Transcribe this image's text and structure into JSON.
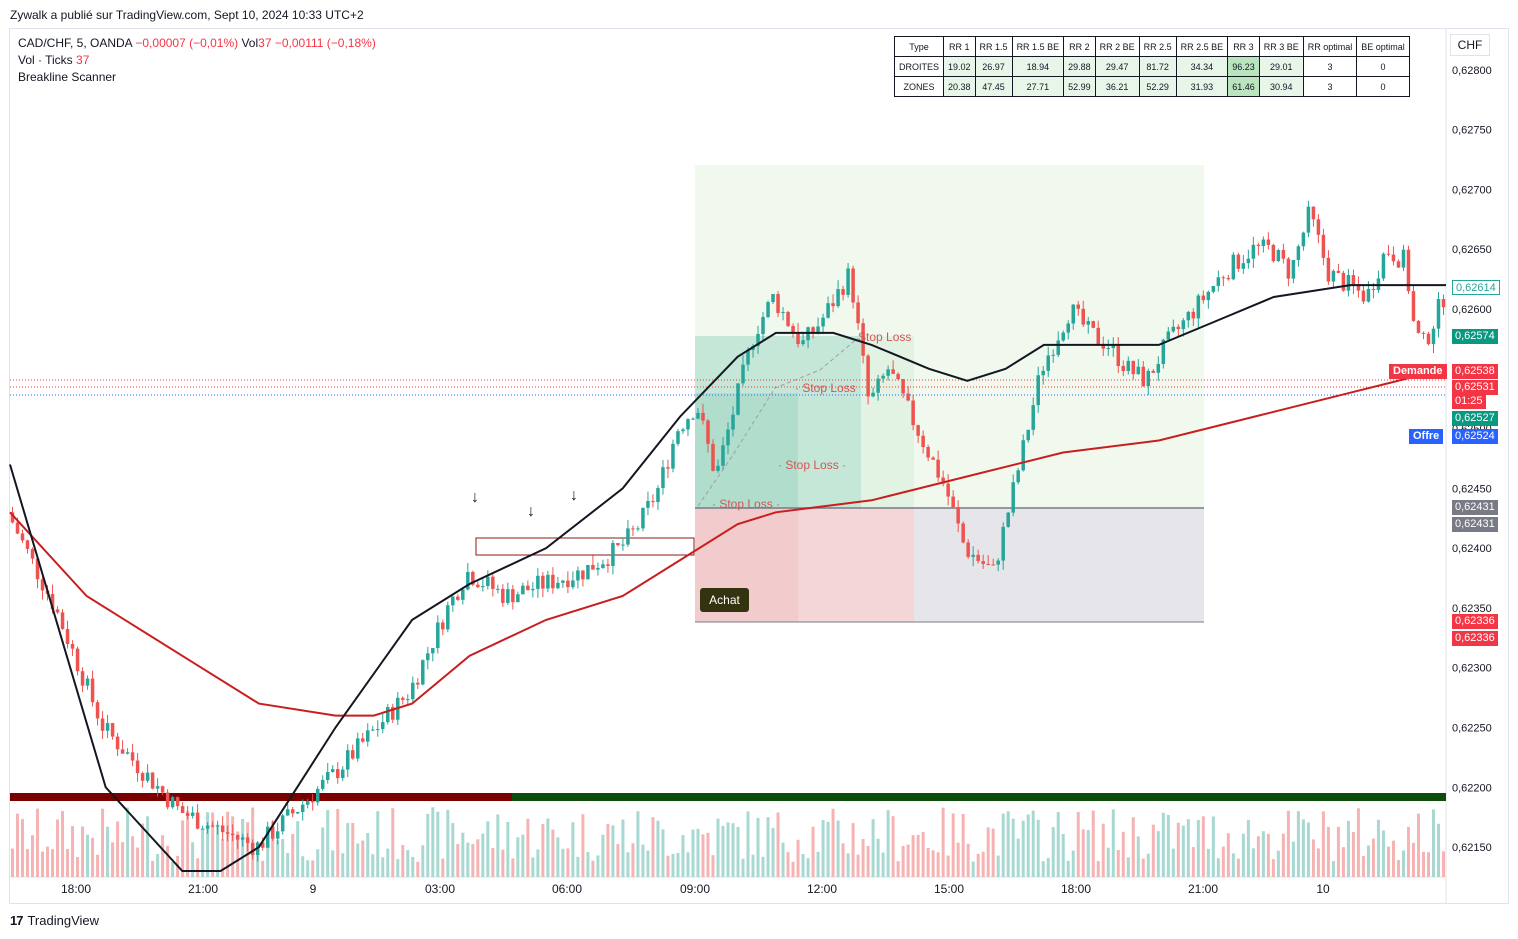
{
  "publisher": "Zywalk a publié sur TradingView.com, Sept 10, 2024 10:33 UTC+2",
  "legend": {
    "symbol": "CAD/CHF, 5, OANDA",
    "change": "−0,00007 (−0,01%)",
    "vol_label": "Vol",
    "vol_value": "37",
    "vol_change": "−0,00111 (−0,18%)",
    "ticks_label": "Vol · Ticks",
    "ticks_value": "37",
    "indicator": "Breakline Scanner"
  },
  "currency": "CHF",
  "stats_table": {
    "headers": [
      "Type",
      "RR 1",
      "RR 1.5",
      "RR 1.5 BE",
      "RR 2",
      "RR 2 BE",
      "RR 2.5",
      "RR 2.5 BE",
      "RR 3",
      "RR 3 BE",
      "RR optimal",
      "BE optimal"
    ],
    "rows": [
      [
        "DROITES",
        "19.02",
        "26.97",
        "18.94",
        "29.88",
        "29.47",
        "81.72",
        "34.34",
        "96.23",
        "29.01",
        "3",
        "0"
      ],
      [
        "ZONES",
        "20.38",
        "47.45",
        "27.71",
        "52.99",
        "36.21",
        "52.29",
        "31.93",
        "61.46",
        "30.94",
        "3",
        "0"
      ]
    ]
  },
  "price_axis": [
    "0,62800",
    "0,62750",
    "0,62700",
    "0,62650",
    "0,62600",
    "0,62550",
    "0,62500",
    "0,62450",
    "0,62400",
    "0,62350",
    "0,62300",
    "0,62250",
    "0,62200",
    "0,62150"
  ],
  "time_axis": [
    "18:00",
    "21:00",
    "9",
    "03:00",
    "06:00",
    "09:00",
    "12:00",
    "15:00",
    "18:00",
    "21:00",
    "10"
  ],
  "price_tags": [
    {
      "text": "0,62614",
      "color": "#26a69a",
      "outline": true
    },
    {
      "text": "0,62574",
      "color": "#089981"
    },
    {
      "text": "0,62538",
      "color": "#f23645"
    },
    {
      "text": "0,62531",
      "color": "#f23645"
    },
    {
      "text": "01:25",
      "color": "#f23645"
    },
    {
      "text": "0,62527",
      "color": "#089981"
    },
    {
      "text": "0,62524",
      "color": "#2962ff"
    },
    {
      "text": "0,62431",
      "color": "#787b86"
    },
    {
      "text": "0,62431",
      "color": "#787b86"
    },
    {
      "text": "0,62336",
      "color": "#f23645"
    },
    {
      "text": "0,62336",
      "color": "#f23645"
    }
  ],
  "demande_label": "Demande",
  "offre_label": "Offre",
  "stop_loss_label": "Stop Loss",
  "achat_label": "Achat",
  "tv_brand": "TradingView",
  "chart_data": {
    "type": "candlestick",
    "symbol": "CAD/CHF",
    "timeframe": "5",
    "ylim": [
      0.62125,
      0.62835
    ],
    "x_ticks": [
      "18:00",
      "21:00",
      "9",
      "03:00",
      "06:00",
      "09:00",
      "12:00",
      "15:00",
      "18:00",
      "21:00",
      "10"
    ],
    "close_path": [
      [
        0,
        0.6243
      ],
      [
        5,
        0.6235
      ],
      [
        10,
        0.6225
      ],
      [
        18,
        0.6218
      ],
      [
        26,
        0.6215
      ],
      [
        34,
        0.6221
      ],
      [
        42,
        0.6228
      ],
      [
        46,
        0.6235
      ],
      [
        48,
        0.6238
      ],
      [
        52,
        0.6236
      ],
      [
        56,
        0.6237
      ],
      [
        60,
        0.6238
      ],
      [
        64,
        0.624
      ],
      [
        66,
        0.6242
      ],
      [
        68,
        0.6245
      ],
      [
        70,
        0.625
      ],
      [
        72,
        0.6252
      ],
      [
        74,
        0.6246
      ],
      [
        76,
        0.6252
      ],
      [
        78,
        0.6258
      ],
      [
        80,
        0.6261
      ],
      [
        83,
        0.6257
      ],
      [
        85,
        0.6259
      ],
      [
        88,
        0.6263
      ],
      [
        90,
        0.6252
      ],
      [
        92,
        0.6255
      ],
      [
        95,
        0.625
      ],
      [
        98,
        0.6245
      ],
      [
        100,
        0.624
      ],
      [
        103,
        0.6238
      ],
      [
        106,
        0.6248
      ],
      [
        108,
        0.6255
      ],
      [
        111,
        0.626
      ],
      [
        113,
        0.6258
      ],
      [
        115,
        0.6257
      ],
      [
        117,
        0.6255
      ],
      [
        119,
        0.6254
      ],
      [
        121,
        0.6257
      ],
      [
        124,
        0.626
      ],
      [
        127,
        0.6263
      ],
      [
        130,
        0.6265
      ],
      [
        132,
        0.6265
      ],
      [
        134,
        0.6263
      ],
      [
        136,
        0.6268
      ],
      [
        138,
        0.6263
      ],
      [
        140,
        0.6262
      ],
      [
        142,
        0.6261
      ],
      [
        144,
        0.6265
      ],
      [
        146,
        0.6264
      ],
      [
        147,
        0.6258
      ],
      [
        148,
        0.6257
      ],
      [
        150,
        0.6261
      ]
    ],
    "ema_fast": [
      [
        0,
        0.6247
      ],
      [
        10,
        0.622
      ],
      [
        18,
        0.6213
      ],
      [
        22,
        0.6213
      ],
      [
        26,
        0.6215
      ],
      [
        34,
        0.6225
      ],
      [
        42,
        0.6234
      ],
      [
        48,
        0.6237
      ],
      [
        56,
        0.624
      ],
      [
        64,
        0.6245
      ],
      [
        70,
        0.6251
      ],
      [
        76,
        0.6256
      ],
      [
        80,
        0.6258
      ],
      [
        86,
        0.6258
      ],
      [
        90,
        0.6257
      ],
      [
        96,
        0.6255
      ],
      [
        100,
        0.6254
      ],
      [
        104,
        0.6255
      ],
      [
        108,
        0.6257
      ],
      [
        114,
        0.6257
      ],
      [
        120,
        0.6257
      ],
      [
        126,
        0.6259
      ],
      [
        132,
        0.6261
      ],
      [
        140,
        0.6262
      ],
      [
        150,
        0.6262
      ]
    ],
    "ema_slow": [
      [
        0,
        0.6243
      ],
      [
        8,
        0.6236
      ],
      [
        18,
        0.6231
      ],
      [
        26,
        0.6227
      ],
      [
        34,
        0.6226
      ],
      [
        38,
        0.6226
      ],
      [
        42,
        0.6227
      ],
      [
        48,
        0.6231
      ],
      [
        56,
        0.6234
      ],
      [
        64,
        0.6236
      ],
      [
        70,
        0.6239
      ],
      [
        76,
        0.6242
      ],
      [
        80,
        0.6243
      ],
      [
        90,
        0.6244
      ],
      [
        100,
        0.6246
      ],
      [
        110,
        0.6248
      ],
      [
        120,
        0.6249
      ],
      [
        130,
        0.6251
      ],
      [
        140,
        0.6253
      ],
      [
        150,
        0.6255
      ]
    ],
    "trade": {
      "entry": 0.62431,
      "stop": 0.62336,
      "tp1": 0.62574,
      "tp_max": 0.62715,
      "current": 0.62614
    },
    "markers": [
      "Stop Loss",
      "Stop Loss",
      "Stop Loss",
      "Stop Loss"
    ]
  }
}
